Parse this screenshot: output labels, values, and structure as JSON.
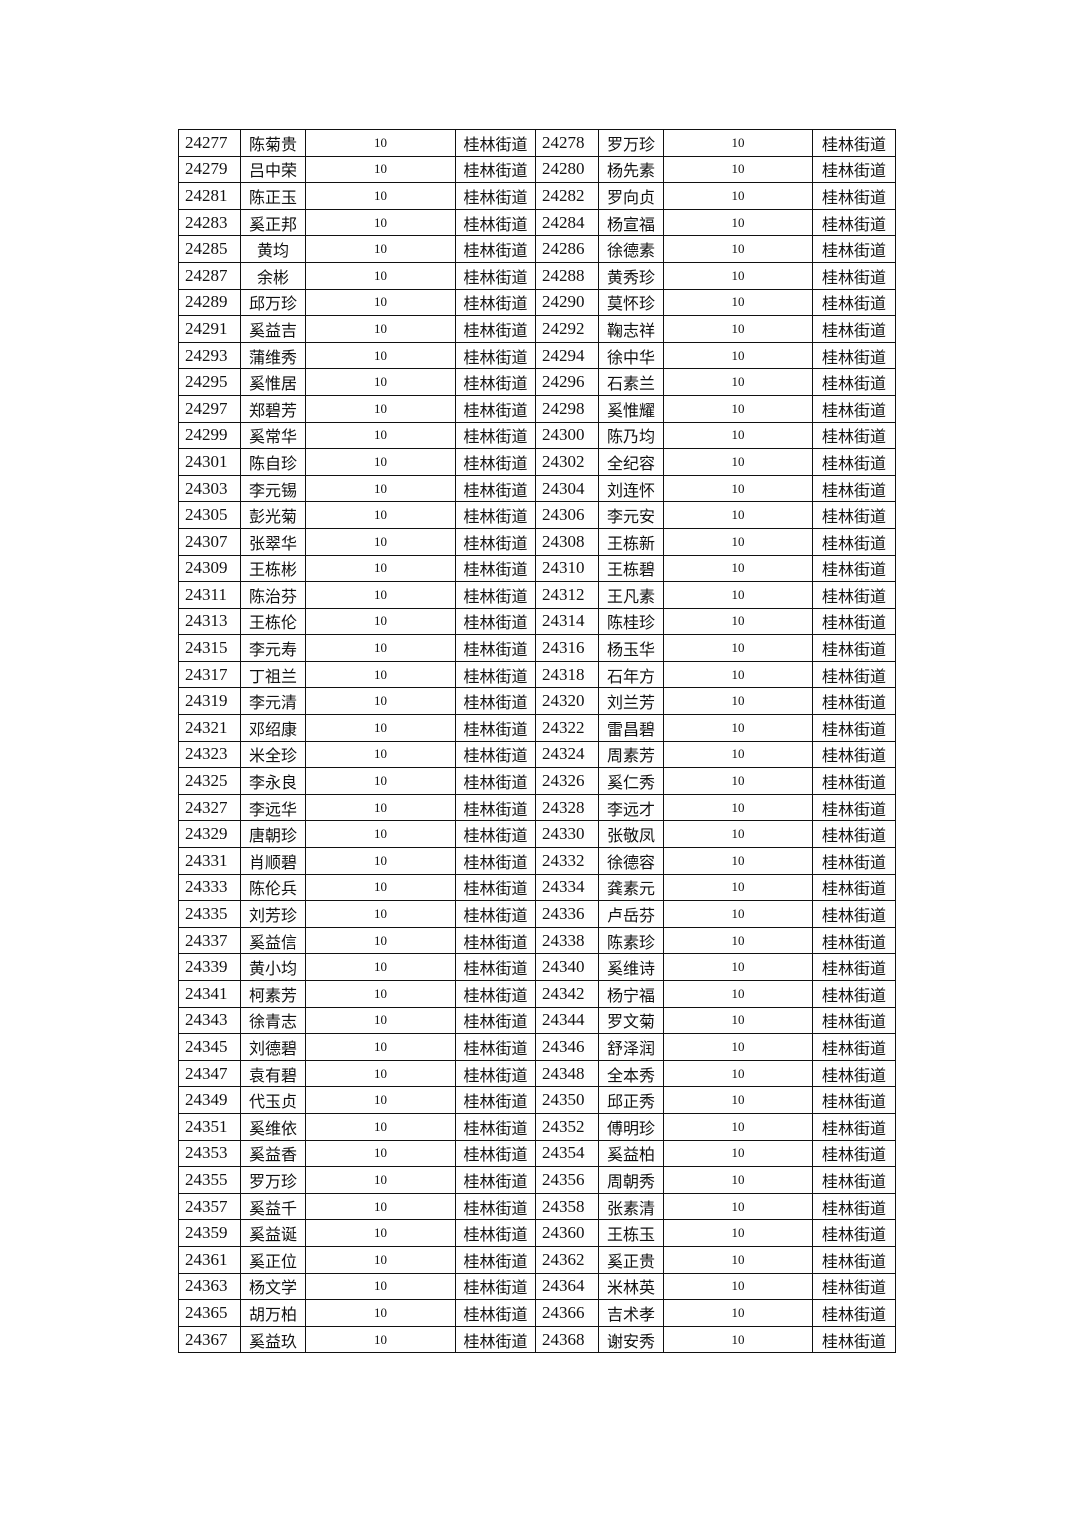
{
  "table": {
    "rows": [
      [
        "24277",
        "陈菊贵",
        "10",
        "桂林街道",
        "24278",
        "罗万珍",
        "10",
        "桂林街道"
      ],
      [
        "24279",
        "吕中荣",
        "10",
        "桂林街道",
        "24280",
        "杨先素",
        "10",
        "桂林街道"
      ],
      [
        "24281",
        "陈正玉",
        "10",
        "桂林街道",
        "24282",
        "罗向贞",
        "10",
        "桂林街道"
      ],
      [
        "24283",
        "奚正邦",
        "10",
        "桂林街道",
        "24284",
        "杨宣福",
        "10",
        "桂林街道"
      ],
      [
        "24285",
        "黄均",
        "10",
        "桂林街道",
        "24286",
        "徐德素",
        "10",
        "桂林街道"
      ],
      [
        "24287",
        "余彬",
        "10",
        "桂林街道",
        "24288",
        "黄秀珍",
        "10",
        "桂林街道"
      ],
      [
        "24289",
        "邱万珍",
        "10",
        "桂林街道",
        "24290",
        "莫怀珍",
        "10",
        "桂林街道"
      ],
      [
        "24291",
        "奚益吉",
        "10",
        "桂林街道",
        "24292",
        "鞠志祥",
        "10",
        "桂林街道"
      ],
      [
        "24293",
        "蒲维秀",
        "10",
        "桂林街道",
        "24294",
        "徐中华",
        "10",
        "桂林街道"
      ],
      [
        "24295",
        "奚惟居",
        "10",
        "桂林街道",
        "24296",
        "石素兰",
        "10",
        "桂林街道"
      ],
      [
        "24297",
        "郑碧芳",
        "10",
        "桂林街道",
        "24298",
        "奚惟耀",
        "10",
        "桂林街道"
      ],
      [
        "24299",
        "奚常华",
        "10",
        "桂林街道",
        "24300",
        "陈乃均",
        "10",
        "桂林街道"
      ],
      [
        "24301",
        "陈自珍",
        "10",
        "桂林街道",
        "24302",
        "全纪容",
        "10",
        "桂林街道"
      ],
      [
        "24303",
        "李元锡",
        "10",
        "桂林街道",
        "24304",
        "刘连怀",
        "10",
        "桂林街道"
      ],
      [
        "24305",
        "彭光菊",
        "10",
        "桂林街道",
        "24306",
        "李元安",
        "10",
        "桂林街道"
      ],
      [
        "24307",
        "张翠华",
        "10",
        "桂林街道",
        "24308",
        "王栋新",
        "10",
        "桂林街道"
      ],
      [
        "24309",
        "王栋彬",
        "10",
        "桂林街道",
        "24310",
        "王栋碧",
        "10",
        "桂林街道"
      ],
      [
        "24311",
        "陈治芬",
        "10",
        "桂林街道",
        "24312",
        "王凡素",
        "10",
        "桂林街道"
      ],
      [
        "24313",
        "王栋伦",
        "10",
        "桂林街道",
        "24314",
        "陈桂珍",
        "10",
        "桂林街道"
      ],
      [
        "24315",
        "李元寿",
        "10",
        "桂林街道",
        "24316",
        "杨玉华",
        "10",
        "桂林街道"
      ],
      [
        "24317",
        "丁祖兰",
        "10",
        "桂林街道",
        "24318",
        "石年方",
        "10",
        "桂林街道"
      ],
      [
        "24319",
        "李元清",
        "10",
        "桂林街道",
        "24320",
        "刘兰芳",
        "10",
        "桂林街道"
      ],
      [
        "24321",
        "邓绍康",
        "10",
        "桂林街道",
        "24322",
        "雷昌碧",
        "10",
        "桂林街道"
      ],
      [
        "24323",
        "米全珍",
        "10",
        "桂林街道",
        "24324",
        "周素芳",
        "10",
        "桂林街道"
      ],
      [
        "24325",
        "李永良",
        "10",
        "桂林街道",
        "24326",
        "奚仁秀",
        "10",
        "桂林街道"
      ],
      [
        "24327",
        "李远华",
        "10",
        "桂林街道",
        "24328",
        "李远才",
        "10",
        "桂林街道"
      ],
      [
        "24329",
        "唐朝珍",
        "10",
        "桂林街道",
        "24330",
        "张敬凤",
        "10",
        "桂林街道"
      ],
      [
        "24331",
        "肖顺碧",
        "10",
        "桂林街道",
        "24332",
        "徐德容",
        "10",
        "桂林街道"
      ],
      [
        "24333",
        "陈伦兵",
        "10",
        "桂林街道",
        "24334",
        "龚素元",
        "10",
        "桂林街道"
      ],
      [
        "24335",
        "刘芳珍",
        "10",
        "桂林街道",
        "24336",
        "卢岳芬",
        "10",
        "桂林街道"
      ],
      [
        "24337",
        "奚益信",
        "10",
        "桂林街道",
        "24338",
        "陈素珍",
        "10",
        "桂林街道"
      ],
      [
        "24339",
        "黄小均",
        "10",
        "桂林街道",
        "24340",
        "奚维诗",
        "10",
        "桂林街道"
      ],
      [
        "24341",
        "柯素芳",
        "10",
        "桂林街道",
        "24342",
        "杨宁福",
        "10",
        "桂林街道"
      ],
      [
        "24343",
        "徐青志",
        "10",
        "桂林街道",
        "24344",
        "罗文菊",
        "10",
        "桂林街道"
      ],
      [
        "24345",
        "刘德碧",
        "10",
        "桂林街道",
        "24346",
        "舒泽润",
        "10",
        "桂林街道"
      ],
      [
        "24347",
        "袁有碧",
        "10",
        "桂林街道",
        "24348",
        "全本秀",
        "10",
        "桂林街道"
      ],
      [
        "24349",
        "代玉贞",
        "10",
        "桂林街道",
        "24350",
        "邱正秀",
        "10",
        "桂林街道"
      ],
      [
        "24351",
        "奚维依",
        "10",
        "桂林街道",
        "24352",
        "傅明珍",
        "10",
        "桂林街道"
      ],
      [
        "24353",
        "奚益香",
        "10",
        "桂林街道",
        "24354",
        "奚益柏",
        "10",
        "桂林街道"
      ],
      [
        "24355",
        "罗万珍",
        "10",
        "桂林街道",
        "24356",
        "周朝秀",
        "10",
        "桂林街道"
      ],
      [
        "24357",
        "奚益千",
        "10",
        "桂林街道",
        "24358",
        "张素清",
        "10",
        "桂林街道"
      ],
      [
        "24359",
        "奚益诞",
        "10",
        "桂林街道",
        "24360",
        "王栋玉",
        "10",
        "桂林街道"
      ],
      [
        "24361",
        "奚正位",
        "10",
        "桂林街道",
        "24362",
        "奚正贵",
        "10",
        "桂林街道"
      ],
      [
        "24363",
        "杨文学",
        "10",
        "桂林街道",
        "24364",
        "米林英",
        "10",
        "桂林街道"
      ],
      [
        "24365",
        "胡万柏",
        "10",
        "桂林街道",
        "24366",
        "吉术孝",
        "10",
        "桂林街道"
      ],
      [
        "24367",
        "奚益玖",
        "10",
        "桂林街道",
        "24368",
        "谢安秀",
        "10",
        "桂林街道"
      ]
    ]
  }
}
